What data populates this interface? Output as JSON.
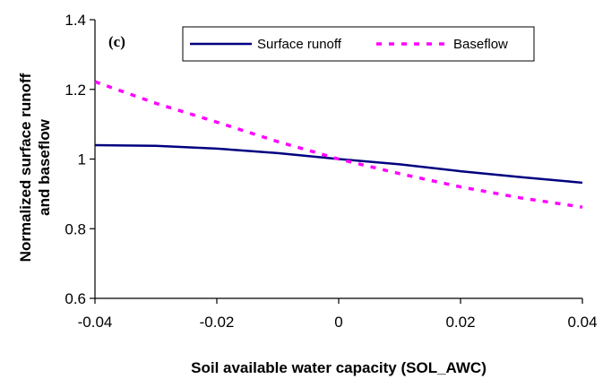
{
  "chart_data": {
    "type": "line",
    "panel_label": "(c)",
    "xlabel": "Soil available water capacity (SOL_AWC)",
    "ylabel_line1": "Normalized surface runoff",
    "ylabel_line2": "and baseflow",
    "xlim": [
      -0.04,
      0.04
    ],
    "ylim": [
      0.6,
      1.4
    ],
    "x_ticks": [
      -0.04,
      -0.02,
      0,
      0.02,
      0.04
    ],
    "x_tick_labels": [
      "-0.04",
      "-0.02",
      "0",
      "0.02",
      "0.04"
    ],
    "y_ticks": [
      0.6,
      0.8,
      1.0,
      1.2,
      1.4
    ],
    "y_tick_labels": [
      "0.6",
      "0.8",
      "1",
      "1.2",
      "1.4"
    ],
    "grid": false,
    "legend_placement": "top-right",
    "series": [
      {
        "name": "Surface runoff",
        "color": "#000080",
        "style": "solid",
        "x": [
          -0.04,
          -0.03,
          -0.02,
          -0.01,
          0,
          0.01,
          0.02,
          0.03,
          0.04
        ],
        "values": [
          1.04,
          1.038,
          1.03,
          1.017,
          1.0,
          0.985,
          0.965,
          0.948,
          0.932
        ]
      },
      {
        "name": "Baseflow",
        "color": "#ff00ff",
        "style": "dashed",
        "x": [
          -0.04,
          -0.03,
          -0.02,
          -0.01,
          0,
          0.01,
          0.02,
          0.03,
          0.04
        ],
        "values": [
          1.222,
          1.16,
          1.106,
          1.05,
          1.0,
          0.958,
          0.92,
          0.888,
          0.862
        ]
      }
    ]
  }
}
